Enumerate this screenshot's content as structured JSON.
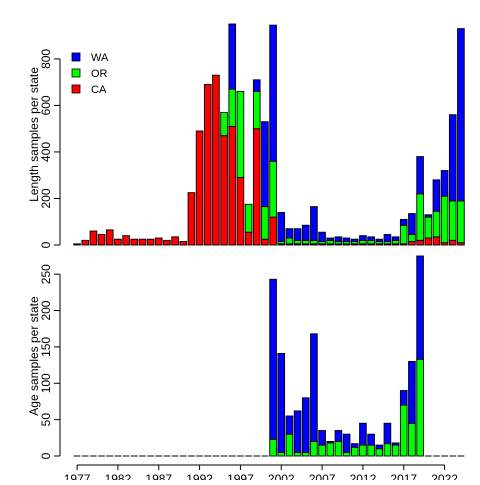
{
  "chart_data": [
    {
      "type": "bar",
      "stacked": true,
      "ylabel": "Length samples per state",
      "ylim": [
        0,
        950
      ],
      "yticks": [
        0,
        200,
        400,
        600,
        800
      ],
      "legend": {
        "placement": "top-left",
        "entries": [
          "WA",
          "OR",
          "CA"
        ]
      },
      "x": [
        1977,
        1978,
        1979,
        1980,
        1981,
        1982,
        1983,
        1984,
        1985,
        1986,
        1987,
        1988,
        1989,
        1990,
        1991,
        1992,
        1993,
        1994,
        1995,
        1996,
        1997,
        1998,
        1999,
        2000,
        2001,
        2002,
        2003,
        2004,
        2005,
        2006,
        2007,
        2008,
        2009,
        2010,
        2011,
        2012,
        2013,
        2014,
        2015,
        2016,
        2017,
        2018,
        2019,
        2020,
        2021,
        2022,
        2023,
        2024
      ],
      "series": [
        {
          "name": "CA",
          "color": "#FF0000",
          "values": [
            5,
            20,
            60,
            45,
            65,
            25,
            40,
            25,
            25,
            25,
            30,
            20,
            35,
            15,
            225,
            490,
            690,
            730,
            470,
            510,
            290,
            55,
            500,
            25,
            120,
            5,
            5,
            5,
            5,
            5,
            5,
            5,
            5,
            5,
            5,
            5,
            5,
            5,
            5,
            5,
            5,
            15,
            20,
            30,
            35,
            10,
            20,
            10
          ]
        },
        {
          "name": "OR",
          "color": "#00FF00",
          "values": [
            0,
            0,
            0,
            0,
            0,
            0,
            0,
            0,
            0,
            0,
            0,
            0,
            0,
            0,
            0,
            0,
            0,
            0,
            100,
            160,
            370,
            120,
            160,
            140,
            240,
            10,
            25,
            15,
            15,
            15,
            10,
            15,
            10,
            10,
            10,
            15,
            15,
            10,
            10,
            15,
            80,
            30,
            200,
            90,
            110,
            200,
            170,
            180
          ]
        },
        {
          "name": "WA",
          "color": "#0000FF",
          "values": [
            0,
            0,
            0,
            0,
            0,
            0,
            0,
            0,
            0,
            0,
            0,
            0,
            0,
            0,
            0,
            0,
            0,
            0,
            0,
            280,
            0,
            0,
            50,
            365,
            585,
            125,
            40,
            50,
            65,
            145,
            40,
            10,
            20,
            15,
            10,
            20,
            15,
            10,
            30,
            15,
            25,
            90,
            160,
            10,
            135,
            110,
            370,
            740
          ]
        }
      ]
    },
    {
      "type": "bar",
      "stacked": true,
      "ylabel": "Age samples per state",
      "ylim": [
        0,
        275
      ],
      "yticks": [
        0,
        50,
        100,
        150,
        200,
        250
      ],
      "xticks": [
        1977,
        1982,
        1987,
        1992,
        1997,
        2002,
        2007,
        2012,
        2017,
        2022
      ],
      "x": [
        1977,
        1978,
        1979,
        1980,
        1981,
        1982,
        1983,
        1984,
        1985,
        1986,
        1987,
        1988,
        1989,
        1990,
        1991,
        1992,
        1993,
        1994,
        1995,
        1996,
        1997,
        1998,
        1999,
        2000,
        2001,
        2002,
        2003,
        2004,
        2005,
        2006,
        2007,
        2008,
        2009,
        2010,
        2011,
        2012,
        2013,
        2014,
        2015,
        2016,
        2017,
        2018,
        2019,
        2020,
        2021,
        2022,
        2023,
        2024
      ],
      "series": [
        {
          "name": "OR",
          "color": "#00FF00",
          "values": [
            0,
            0,
            0,
            0,
            0,
            0,
            0,
            0,
            0,
            0,
            0,
            0,
            0,
            0,
            0,
            0,
            0,
            0,
            0,
            0,
            0,
            0,
            0,
            0,
            23,
            5,
            30,
            5,
            5,
            20,
            15,
            18,
            20,
            5,
            12,
            15,
            15,
            10,
            17,
            15,
            70,
            45,
            133,
            0,
            0,
            0,
            0,
            0
          ]
        },
        {
          "name": "WA",
          "color": "#0000FF",
          "values": [
            0,
            0,
            0,
            0,
            0,
            0,
            0,
            0,
            0,
            0,
            0,
            0,
            0,
            0,
            0,
            0,
            0,
            0,
            0,
            0,
            0,
            0,
            0,
            0,
            220,
            136,
            25,
            57,
            75,
            148,
            20,
            2,
            15,
            25,
            5,
            30,
            15,
            5,
            28,
            3,
            20,
            85,
            142,
            0,
            0,
            0,
            0,
            0
          ]
        }
      ]
    }
  ]
}
